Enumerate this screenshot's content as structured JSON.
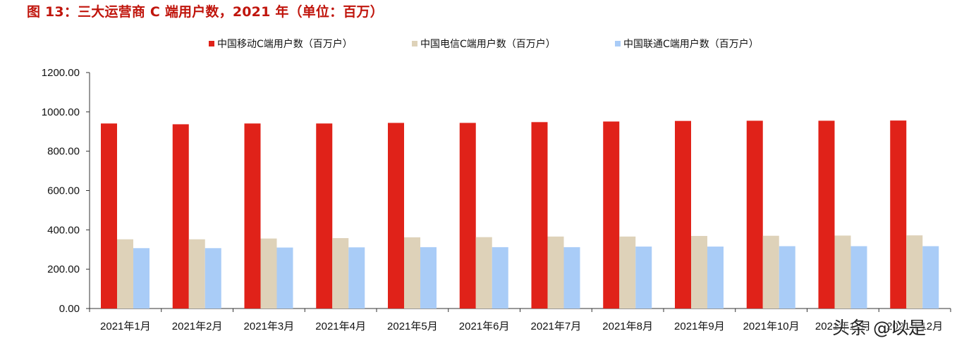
{
  "figure_title": "图 13：三大运营商 C 端用户数，2021 年（单位：百万）",
  "watermark": "头条 @以是",
  "colors": {
    "title": "#c0150c",
    "series": [
      "#e02219",
      "#ded2b9",
      "#a9ccf7"
    ]
  },
  "chart_data": {
    "type": "bar",
    "title": "",
    "xlabel": "",
    "ylabel": "",
    "ylim": [
      0,
      1200
    ],
    "yticks": [
      0,
      200,
      400,
      600,
      800,
      1000,
      1200
    ],
    "ytick_labels": [
      "0.00",
      "200.00",
      "400.00",
      "600.00",
      "800.00",
      "1000.00",
      "1200.00"
    ],
    "grid": false,
    "legend_position": "top",
    "categories": [
      "2021年1月",
      "2021年2月",
      "2021年3月",
      "2021年4月",
      "2021年5月",
      "2021年6月",
      "2021年7月",
      "2021年8月",
      "2021年9月",
      "2021年10月",
      "2021年11月",
      "2021年12月"
    ],
    "series": [
      {
        "name": "中国移动C端用户数（百万户）",
        "color": "#e02219",
        "values": [
          941,
          937,
          941,
          941,
          944,
          944,
          948,
          951,
          954,
          955,
          955,
          956
        ]
      },
      {
        "name": "中国电信C端用户数（百万户）",
        "color": "#ded2b9",
        "values": [
          352,
          352,
          356,
          358,
          362,
          363,
          366,
          366,
          369,
          370,
          371,
          372
        ]
      },
      {
        "name": "中国联通C端用户数（百万户）",
        "color": "#a9ccf7",
        "values": [
          307,
          307,
          310,
          311,
          312,
          312,
          312,
          315,
          315,
          317,
          317,
          317
        ]
      }
    ]
  }
}
